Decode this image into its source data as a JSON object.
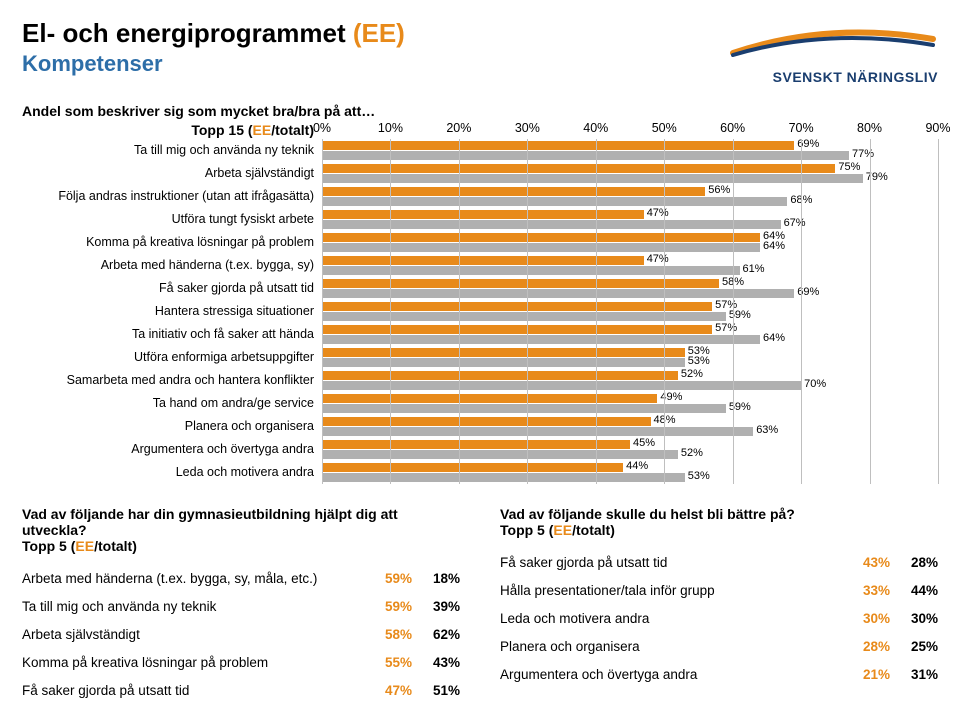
{
  "colors": {
    "accent": "#e88a1a",
    "sub": "#2d6ea8",
    "bar_ee": "#e88a1a",
    "bar_tot": "#b0b0b0",
    "grid": "#bfbfbf",
    "logo_text": "#1a3e6f"
  },
  "header": {
    "title_a": "El- och energiprogrammet ",
    "title_b": "(EE)",
    "subtitle": "Kompetenser",
    "logo_text": "SVENSKT NÄRINGSLIV"
  },
  "chart": {
    "intro": "Andel som beskriver sig som mycket bra/bra på att…",
    "topp_a": "Topp 15 (",
    "topp_b": "EE",
    "topp_c": "/totalt)",
    "xmax": 90,
    "ticks": [
      0,
      10,
      20,
      30,
      40,
      50,
      60,
      70,
      80,
      90
    ],
    "items": [
      {
        "label": "Ta till mig och använda ny teknik",
        "ee": 69,
        "tot": 77
      },
      {
        "label": "Arbeta självständigt",
        "ee": 75,
        "tot": 79
      },
      {
        "label": "Följa andras instruktioner (utan att ifrågasätta)",
        "ee": 56,
        "tot": 68
      },
      {
        "label": "Utföra tungt fysiskt arbete",
        "ee": 47,
        "tot": 67
      },
      {
        "label": "Komma på kreativa lösningar på problem",
        "ee": 64,
        "tot": 64
      },
      {
        "label": "Arbeta med händerna (t.ex. bygga, sy)",
        "ee": 47,
        "tot": 61
      },
      {
        "label": "Få saker gjorda på utsatt tid",
        "ee": 58,
        "tot": 69
      },
      {
        "label": "Hantera stressiga situationer",
        "ee": 57,
        "tot": 59
      },
      {
        "label": "Ta initiativ och få saker att hända",
        "ee": 57,
        "tot": 64
      },
      {
        "label": "Utföra enformiga arbetsuppgifter",
        "ee": 53,
        "tot": 53
      },
      {
        "label": "Samarbeta med andra och hantera konflikter",
        "ee": 52,
        "tot": 70
      },
      {
        "label": "Ta hand om andra/ge service",
        "ee": 49,
        "tot": 59
      },
      {
        "label": "Planera och organisera",
        "ee": 48,
        "tot": 63
      },
      {
        "label": "Argumentera och övertyga andra",
        "ee": 45,
        "tot": 52
      },
      {
        "label": "Leda och motivera andra",
        "ee": 44,
        "tot": 53
      }
    ]
  },
  "bottom": {
    "left": {
      "q": "Vad av följande har din gymnasieutbildning hjälpt dig att utveckla?",
      "topp_a": "Topp 5 (",
      "topp_b": "EE",
      "topp_c": "/totalt)",
      "rows": [
        {
          "label": "Arbeta med händerna (t.ex. bygga, sy, måla, etc.)",
          "ee": "59%",
          "tot": "18%"
        },
        {
          "label": "Ta till mig och använda ny teknik",
          "ee": "59%",
          "tot": "39%"
        },
        {
          "label": "Arbeta självständigt",
          "ee": "58%",
          "tot": "62%"
        },
        {
          "label": "Komma på kreativa lösningar på problem",
          "ee": "55%",
          "tot": "43%"
        },
        {
          "label": "Få saker gjorda på utsatt tid",
          "ee": "47%",
          "tot": "51%"
        }
      ]
    },
    "right": {
      "q": "Vad av följande skulle du helst bli bättre på?",
      "topp_a": "Topp 5 (",
      "topp_b": "EE",
      "topp_c": "/totalt)",
      "rows": [
        {
          "label": "Få saker gjorda på utsatt tid",
          "ee": "43%",
          "tot": "28%"
        },
        {
          "label": "Hålla presentationer/tala inför grupp",
          "ee": "33%",
          "tot": "44%"
        },
        {
          "label": "Leda och motivera andra",
          "ee": "30%",
          "tot": "30%"
        },
        {
          "label": "Planera och organisera",
          "ee": "28%",
          "tot": "25%"
        },
        {
          "label": "Argumentera och övertyga andra",
          "ee": "21%",
          "tot": "31%"
        }
      ]
    }
  }
}
